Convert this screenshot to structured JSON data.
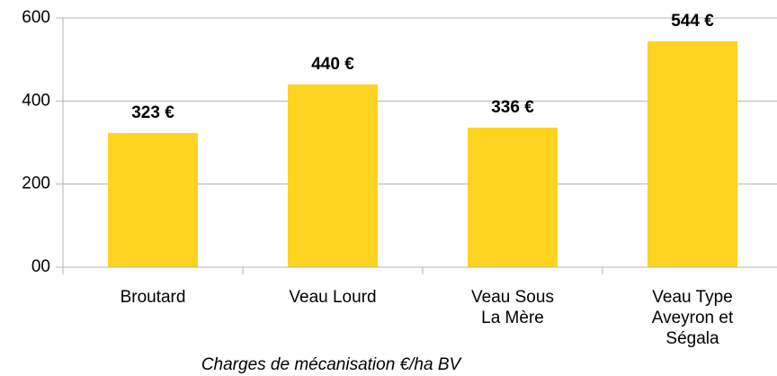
{
  "chart_data": {
    "type": "bar",
    "categories": [
      "Broutard",
      "Veau Lourd",
      "Veau Sous La Mère",
      "Veau Type Aveyron et Ségala"
    ],
    "values": [
      323,
      440,
      336,
      544
    ],
    "value_labels": [
      "323 €",
      "440 €",
      "336 €",
      "544 €"
    ],
    "color": "#ffd320",
    "ylim": [
      0,
      600
    ],
    "yticks": [
      {
        "value": 0,
        "label": "00"
      },
      200,
      400,
      600
    ],
    "grid": true,
    "x_axis_label": "Charges de mécanisation €/ha BV"
  }
}
